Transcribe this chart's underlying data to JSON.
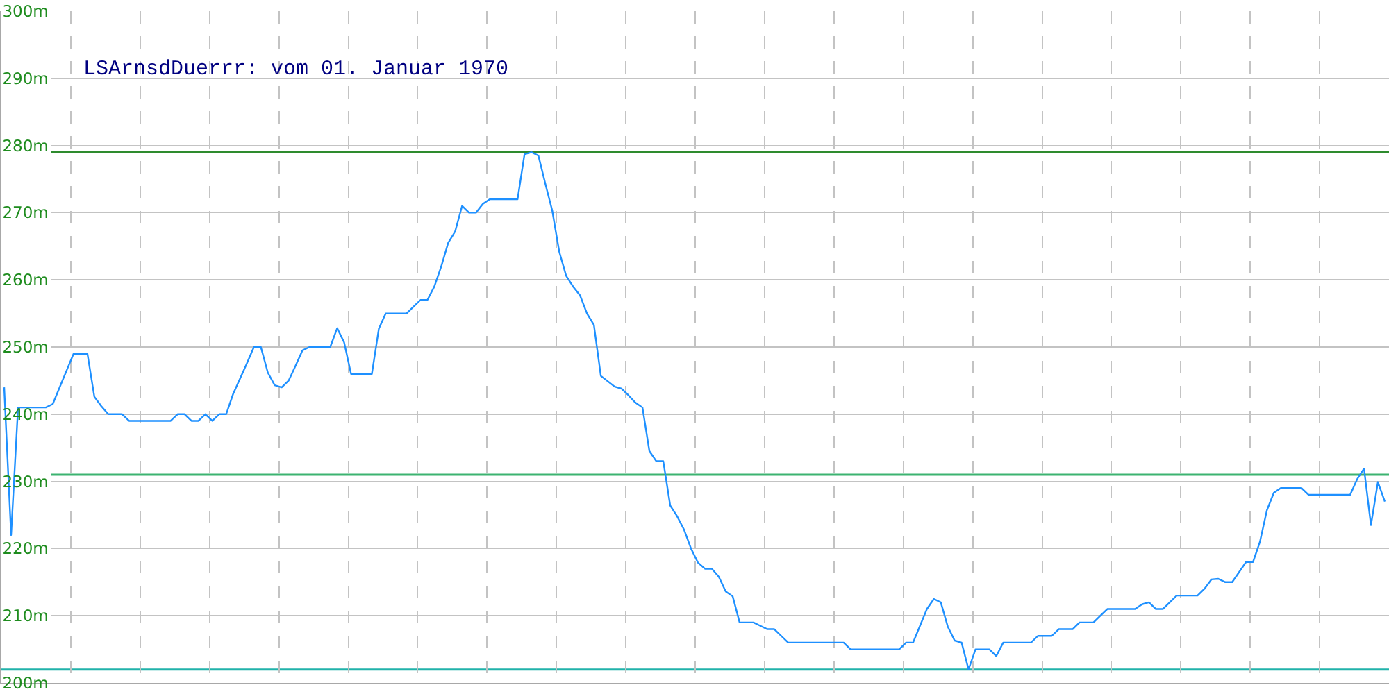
{
  "chart_data": {
    "type": "line",
    "title": "LSArnsdDuerrr: vom 01. Januar 1970",
    "categories": [
      null,
      null,
      null,
      null,
      null,
      null,
      null,
      null,
      null,
      null,
      null,
      null,
      null,
      null,
      null,
      null,
      null,
      null,
      null,
      null,
      null,
      null,
      null,
      null,
      null,
      null,
      null,
      null,
      null,
      null,
      null,
      null,
      null,
      null,
      null,
      null,
      null,
      null,
      null,
      null,
      null,
      null,
      null,
      null,
      null,
      null,
      null,
      null,
      null,
      null,
      null,
      null,
      null,
      null,
      null,
      null,
      null,
      null,
      null,
      null,
      null,
      null,
      null,
      null,
      null,
      null,
      null,
      null,
      null,
      null,
      null,
      null,
      null,
      null,
      null,
      null,
      null,
      null,
      null,
      null,
      null,
      null,
      null,
      null,
      null,
      null,
      null,
      null,
      null,
      null,
      null,
      null,
      null,
      null,
      null,
      null,
      null,
      null,
      null,
      null,
      null,
      null,
      null,
      null,
      null,
      null,
      null,
      null,
      null,
      null,
      null,
      null,
      null,
      null,
      null,
      null,
      null,
      null,
      null,
      null,
      null,
      null,
      null,
      null,
      null,
      null,
      null,
      null,
      null,
      null,
      null,
      null,
      null,
      null,
      null,
      null,
      null,
      null,
      null,
      null,
      null,
      null,
      null,
      null,
      null,
      null,
      null,
      null,
      null,
      null,
      null,
      null,
      null,
      null,
      null,
      null,
      null,
      null,
      null,
      null,
      null,
      null,
      null,
      null,
      null,
      null,
      null,
      null,
      null,
      null,
      null,
      null,
      null,
      null,
      null,
      null,
      null,
      null,
      null,
      null,
      null,
      null,
      null,
      null,
      null,
      null,
      null,
      null,
      null,
      null,
      null,
      null,
      null,
      null,
      null,
      null,
      null,
      null,
      null,
      null
    ],
    "series": [
      {
        "color": "#1e90ff",
        "values": [
          244,
          222,
          241,
          241,
          241,
          241,
          241,
          241.5,
          244,
          246.5,
          249,
          249,
          249,
          242.6,
          241.2,
          240,
          240,
          240,
          239,
          239,
          239,
          239,
          239,
          239,
          239,
          240,
          240,
          239,
          239,
          240,
          239,
          240,
          240,
          243,
          245.3,
          247.6,
          250,
          250,
          246.2,
          244.3,
          244,
          245,
          247.2,
          249.5,
          250,
          250,
          250,
          250,
          252.8,
          250.7,
          246,
          246,
          246,
          246,
          252.7,
          255,
          255,
          255,
          255,
          256,
          257,
          257,
          259,
          262,
          265.5,
          267.2,
          271,
          270,
          270,
          271.3,
          272,
          272,
          272,
          272,
          272,
          278.7,
          279,
          278.5,
          274.3,
          270.3,
          264.2,
          260.6,
          259,
          257.7,
          255,
          253.3,
          245.7,
          244.9,
          244.1,
          243.8,
          242.8,
          241.7,
          241,
          234.5,
          233,
          233,
          226.4,
          224.8,
          222.8,
          220,
          217.9,
          217,
          217,
          215.8,
          213.6,
          212.9,
          209,
          209,
          209,
          208.5,
          208,
          208,
          207,
          206,
          206,
          206,
          206,
          206,
          206,
          206,
          206,
          206,
          205,
          205,
          205,
          205,
          205,
          205,
          205,
          205,
          206,
          206,
          208.5,
          211,
          212.5,
          212,
          208.4,
          206.3,
          206,
          202,
          205,
          205,
          205,
          204,
          206,
          206,
          206,
          206,
          206,
          207,
          207,
          207,
          208,
          208,
          208,
          209,
          209,
          209,
          210,
          211,
          211,
          211,
          211,
          211,
          211.7,
          212,
          211,
          211,
          212,
          213,
          213,
          213,
          213,
          214,
          215.4,
          215.5,
          215,
          215,
          216.5,
          218,
          218,
          221,
          225.7,
          228.3,
          229,
          229,
          229,
          229,
          228,
          228,
          228,
          228,
          228,
          228,
          228,
          230.3,
          231.9,
          223.5,
          229.9,
          227
        ]
      }
    ],
    "ylim": [
      200,
      300
    ],
    "yticks": [
      {
        "value": 200,
        "label": "200m"
      },
      {
        "value": 210,
        "label": "210m"
      },
      {
        "value": 220,
        "label": "220m"
      },
      {
        "value": 230,
        "label": "230m"
      },
      {
        "value": 240,
        "label": "240m"
      },
      {
        "value": 250,
        "label": "250m"
      },
      {
        "value": 260,
        "label": "260m"
      },
      {
        "value": 270,
        "label": "270m"
      },
      {
        "value": 280,
        "label": "280m"
      },
      {
        "value": 290,
        "label": "290m"
      },
      {
        "value": 300,
        "label": "300m"
      }
    ],
    "ref_lines": [
      {
        "axis": "y",
        "value": 279,
        "color": "#2e8b2e"
      },
      {
        "axis": "y",
        "value": 231,
        "color": "#3cb371"
      },
      {
        "axis": "y",
        "value": 202,
        "color": "#20b2aa"
      }
    ],
    "grid": true,
    "tick_labels": "y",
    "line_style": "solid"
  }
}
